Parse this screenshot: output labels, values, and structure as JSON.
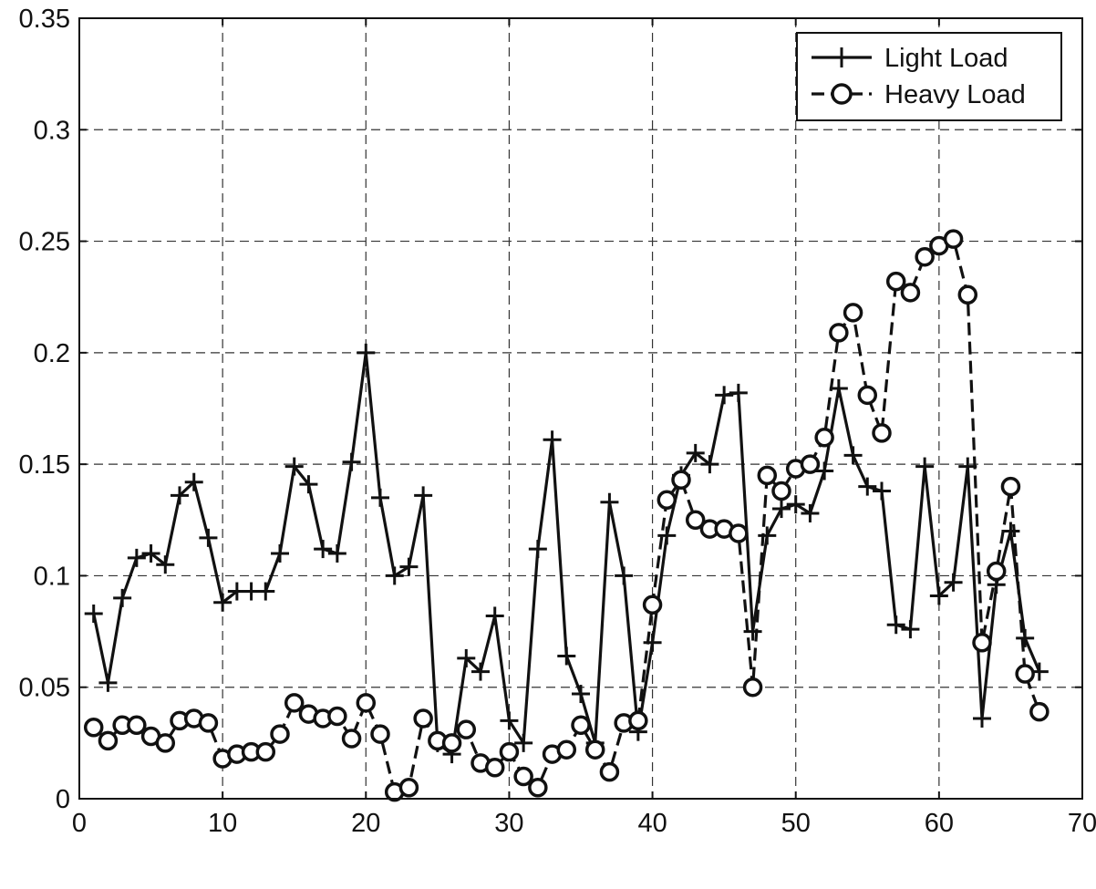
{
  "chart_data": {
    "type": "line",
    "title": "",
    "xlabel": "",
    "ylabel": "",
    "xlim": [
      0,
      70
    ],
    "ylim": [
      0,
      0.35
    ],
    "xticks": [
      0,
      10,
      20,
      30,
      40,
      50,
      60,
      70
    ],
    "yticks": [
      0,
      0.05,
      0.1,
      0.15,
      0.2,
      0.25,
      0.3,
      0.35
    ],
    "xtick_labels": [
      "0",
      "10",
      "20",
      "30",
      "40",
      "50",
      "60",
      "70"
    ],
    "ytick_labels": [
      "0",
      "0.05",
      "0.1",
      "0.15",
      "0.2",
      "0.25",
      "0.3",
      "0.35"
    ],
    "grid": true,
    "legend_position": "top-right",
    "x": [
      1,
      2,
      3,
      4,
      5,
      6,
      7,
      8,
      9,
      10,
      11,
      12,
      13,
      14,
      15,
      16,
      17,
      18,
      19,
      20,
      21,
      22,
      23,
      24,
      25,
      26,
      27,
      28,
      29,
      30,
      31,
      32,
      33,
      34,
      35,
      36,
      37,
      38,
      39,
      40,
      41,
      42,
      43,
      44,
      45,
      46,
      47,
      48,
      49,
      50,
      51,
      52,
      53,
      54,
      55,
      56,
      57,
      58,
      59,
      60,
      61,
      62,
      63,
      64,
      65,
      66,
      67
    ],
    "series": [
      {
        "name": "Light Load",
        "marker": "plus",
        "line": "solid",
        "values": [
          0.083,
          0.052,
          0.09,
          0.108,
          0.11,
          0.105,
          0.136,
          0.142,
          0.117,
          0.088,
          0.093,
          0.093,
          0.093,
          0.11,
          0.149,
          0.141,
          0.112,
          0.11,
          0.151,
          0.2,
          0.135,
          0.1,
          0.104,
          0.136,
          0.025,
          0.02,
          0.063,
          0.057,
          0.082,
          0.035,
          0.025,
          0.112,
          0.161,
          0.064,
          0.047,
          0.025,
          0.133,
          0.1,
          0.03,
          0.07,
          0.118,
          0.145,
          0.155,
          0.15,
          0.181,
          0.182,
          0.075,
          0.118,
          0.13,
          0.132,
          0.128,
          0.147,
          0.184,
          0.154,
          0.14,
          0.138,
          0.078,
          0.076,
          0.149,
          0.091,
          0.097,
          0.149,
          0.036,
          0.096,
          0.12,
          0.072,
          0.057
        ]
      },
      {
        "name": "Heavy Load",
        "marker": "circle",
        "line": "dashed",
        "values": [
          0.032,
          0.026,
          0.033,
          0.033,
          0.028,
          0.025,
          0.035,
          0.036,
          0.034,
          0.018,
          0.02,
          0.021,
          0.021,
          0.029,
          0.043,
          0.038,
          0.036,
          0.037,
          0.027,
          0.043,
          0.029,
          0.003,
          0.005,
          0.036,
          0.026,
          0.025,
          0.031,
          0.016,
          0.014,
          0.021,
          0.01,
          0.005,
          0.02,
          0.022,
          0.033,
          0.022,
          0.012,
          0.034,
          0.035,
          0.087,
          0.134,
          0.143,
          0.125,
          0.121,
          0.121,
          0.119,
          0.05,
          0.145,
          0.138,
          0.148,
          0.15,
          0.162,
          0.209,
          0.218,
          0.181,
          0.164,
          0.232,
          0.227,
          0.243,
          0.248,
          0.251,
          0.226,
          0.07,
          0.102,
          0.14,
          0.056,
          0.039
        ]
      }
    ]
  }
}
